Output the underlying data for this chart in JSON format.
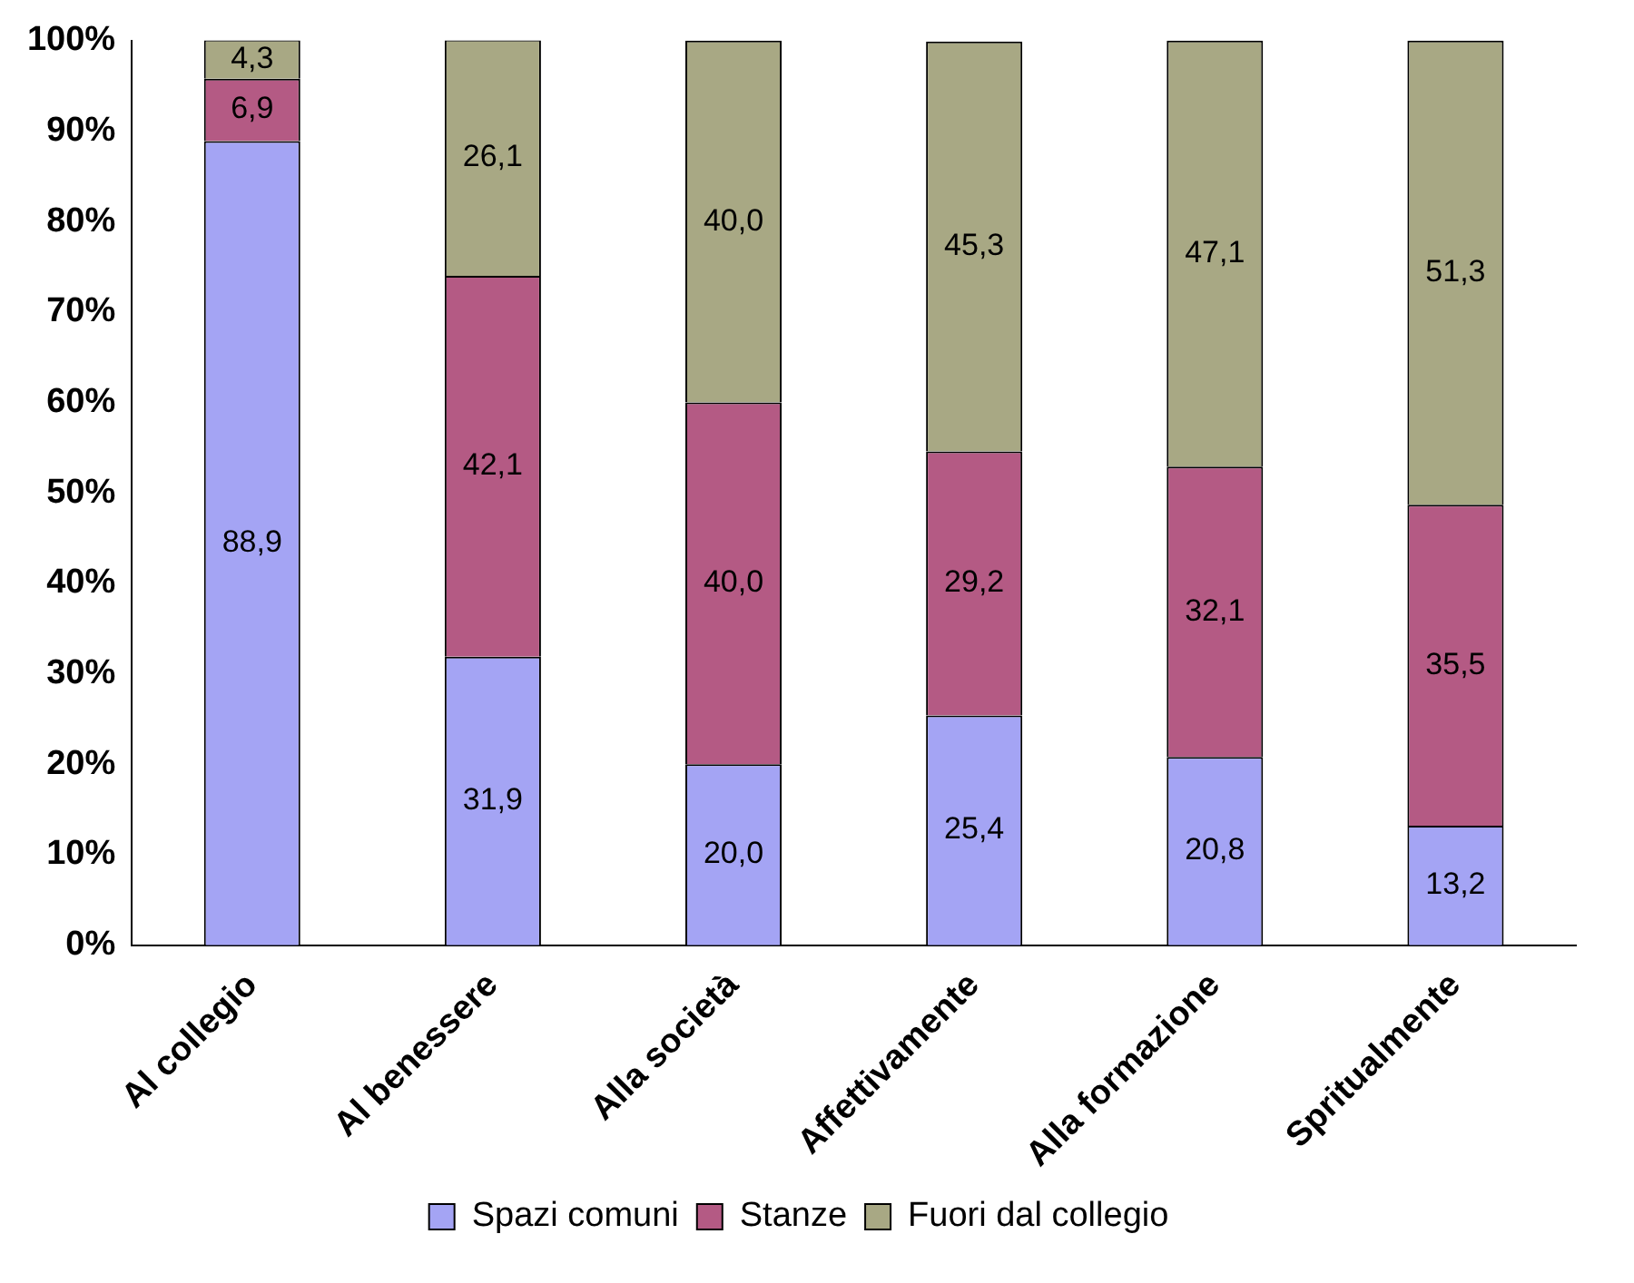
{
  "chart_data": {
    "type": "bar",
    "stacked": true,
    "categories": [
      "Al collegio",
      "Al benessere",
      "Alla società",
      "Affettivamente",
      "Alla formazione",
      "Spritualmente"
    ],
    "series": [
      {
        "name": "Spazi comuni",
        "color": "#a4a4f4",
        "values": [
          88.9,
          31.9,
          20.0,
          25.4,
          20.8,
          13.2
        ],
        "value_labels": [
          "88,9",
          "31,9",
          "20,0",
          "25,4",
          "20,8",
          "13,2"
        ]
      },
      {
        "name": "Stanze",
        "color": "#b45a84",
        "values": [
          6.9,
          42.1,
          40.0,
          29.2,
          32.1,
          35.5
        ],
        "value_labels": [
          "6,9",
          "42,1",
          "40,0",
          "29,2",
          "32,1",
          "35,5"
        ]
      },
      {
        "name": "Fuori dal collegio",
        "color": "#a8a884",
        "values": [
          4.3,
          26.1,
          40.0,
          45.3,
          47.1,
          51.3
        ],
        "value_labels": [
          "4,3",
          "26,1",
          "40,0",
          "45,3",
          "47,1",
          "51,3"
        ]
      }
    ],
    "ylim": [
      0,
      100
    ],
    "yticks": [
      {
        "value": 0,
        "label": "0%"
      },
      {
        "value": 10,
        "label": "10%"
      },
      {
        "value": 20,
        "label": "20%"
      },
      {
        "value": 30,
        "label": "30%"
      },
      {
        "value": 40,
        "label": "40%"
      },
      {
        "value": 50,
        "label": "50%"
      },
      {
        "value": 60,
        "label": "60%"
      },
      {
        "value": 70,
        "label": "70%"
      },
      {
        "value": 80,
        "label": "80%"
      },
      {
        "value": 90,
        "label": "90%"
      },
      {
        "value": 100,
        "label": "100%"
      }
    ],
    "grid": false,
    "legend": "bottom"
  }
}
